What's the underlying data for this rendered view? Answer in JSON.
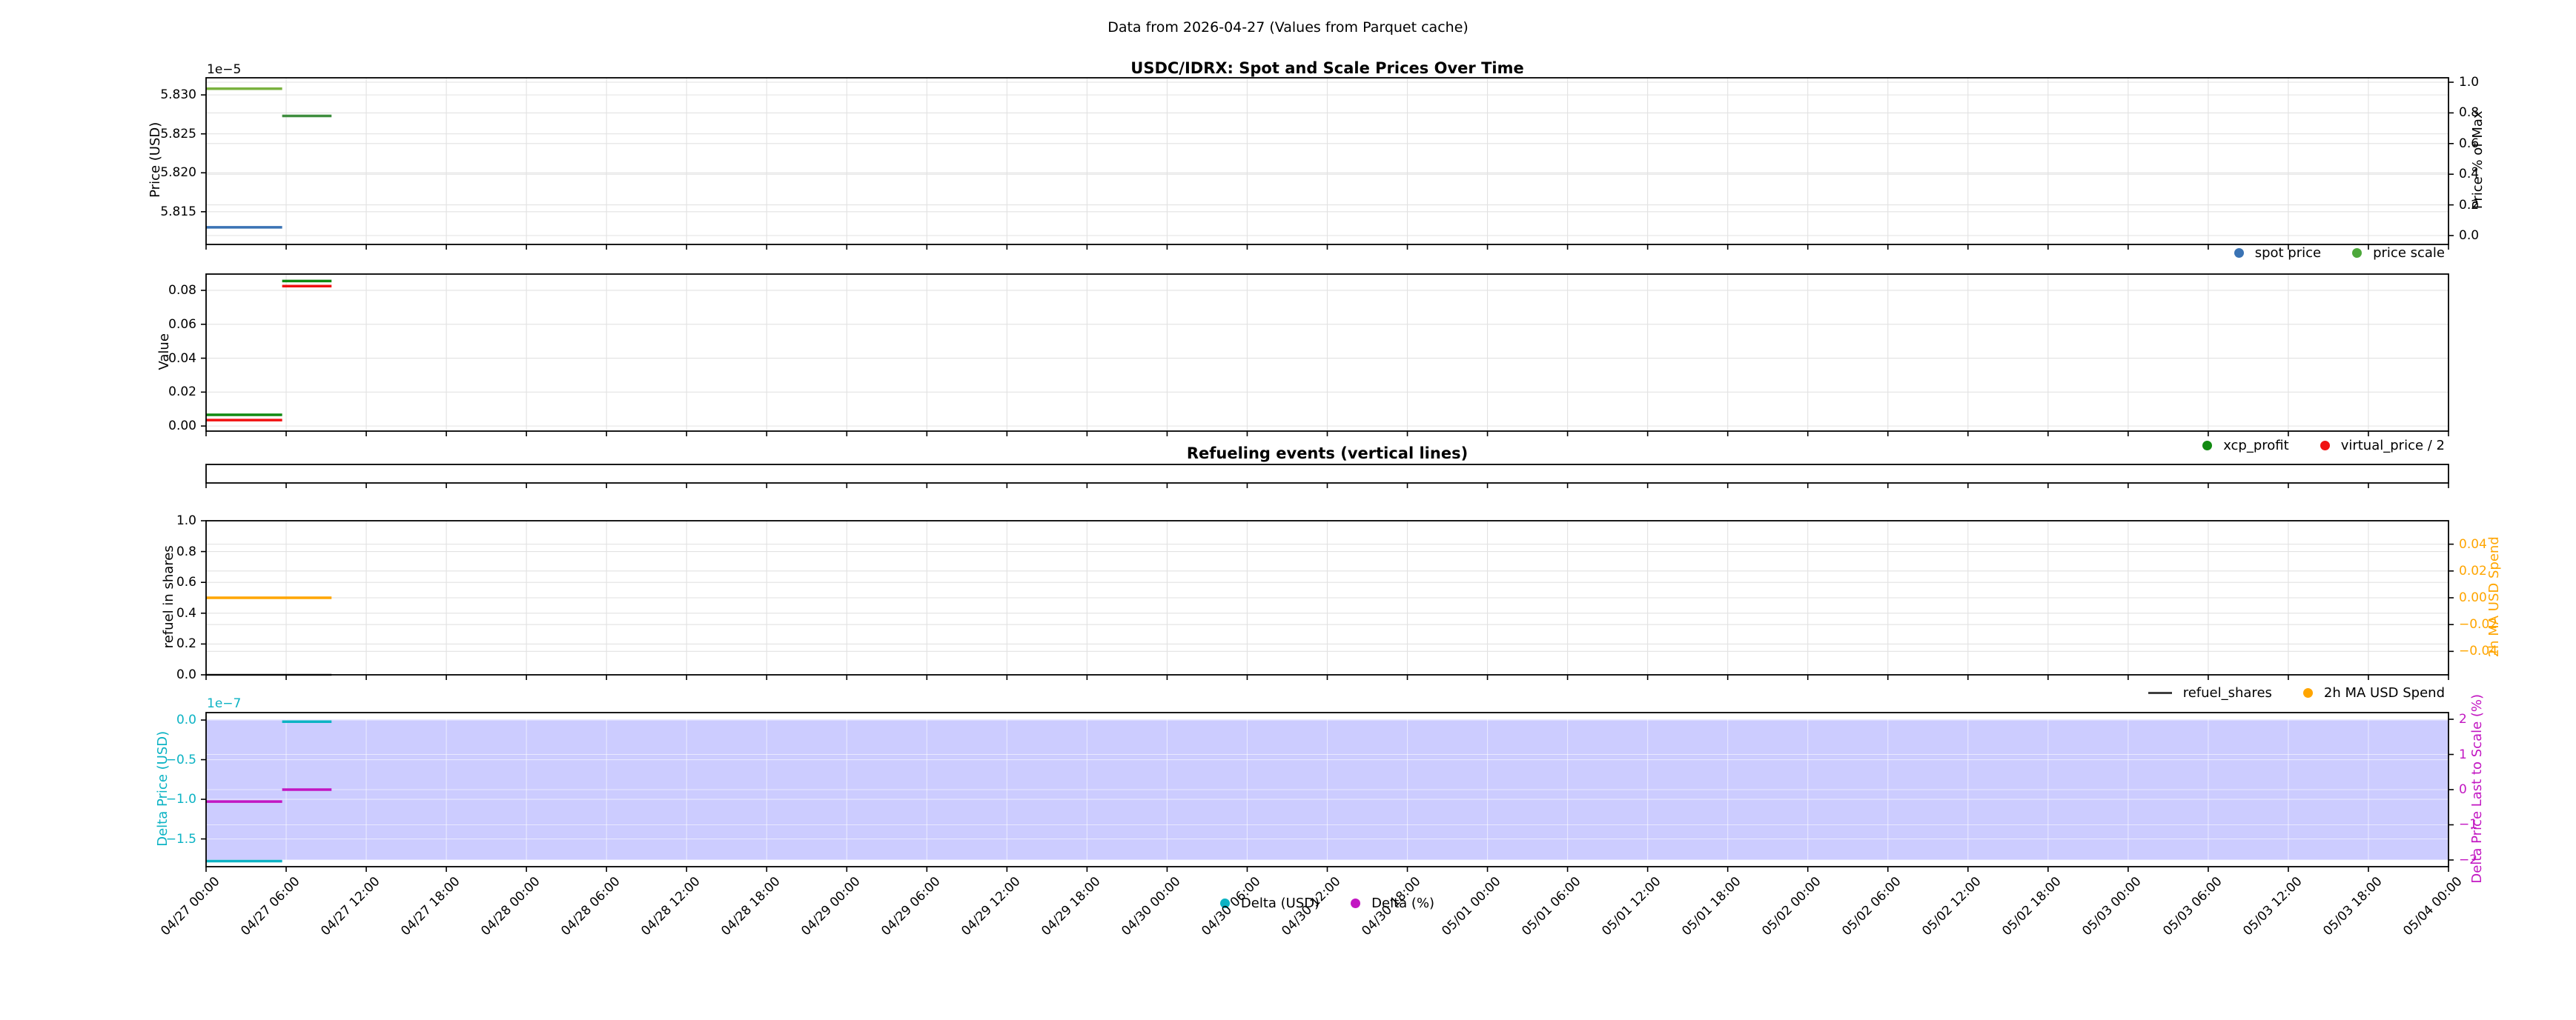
{
  "suptitle": "Data from 2026-04-27 (Values from Parquet cache)",
  "chart_data": {
    "type": "line",
    "note": "step-style horizontal segments; x measured in hours since 04/27 00:00",
    "x_axis": {
      "range_hours": [
        0,
        168
      ],
      "tick_interval_hours": 6,
      "tick_labels": [
        "04/27 00:00",
        "04/27 06:00",
        "04/27 12:00",
        "04/27 18:00",
        "04/28 00:00",
        "04/28 06:00",
        "04/28 12:00",
        "04/28 18:00",
        "04/29 00:00",
        "04/29 06:00",
        "04/29 12:00",
        "04/29 18:00",
        "04/30 00:00",
        "04/30 06:00",
        "04/30 12:00",
        "04/30 18:00",
        "05/01 00:00",
        "05/01 06:00",
        "05/01 12:00",
        "05/01 18:00",
        "05/02 00:00",
        "05/02 06:00",
        "05/02 12:00",
        "05/02 18:00",
        "05/03 00:00",
        "05/03 06:00",
        "05/03 12:00",
        "05/03 18:00",
        "05/04 00:00"
      ]
    },
    "subplots": [
      {
        "id": "ax1",
        "title": "USDC/IDRX: Spot and Scale Prices Over Time",
        "left_axis": {
          "label": "Price (USD)",
          "offset_text": "1e−5",
          "color": "#000000",
          "unit": "1e-5",
          "ylim": [
            5.8108,
            5.8322
          ],
          "ticks": [
            {
              "v": 5.815,
              "l": "5.815"
            },
            {
              "v": 5.82,
              "l": "5.820"
            },
            {
              "v": 5.825,
              "l": "5.825"
            },
            {
              "v": 5.83,
              "l": "5.830"
            }
          ]
        },
        "right_axis": {
          "label": "Price % of Max",
          "color": "#000000",
          "ylim": [
            -0.058,
            1.029
          ],
          "ticks": [
            {
              "v": 0.0,
              "l": "0.0"
            },
            {
              "v": 0.2,
              "l": "0.2"
            },
            {
              "v": 0.4,
              "l": "0.4"
            },
            {
              "v": 0.6,
              "l": "0.6"
            },
            {
              "v": 0.8,
              "l": "0.8"
            },
            {
              "v": 1.0,
              "l": "1.0"
            }
          ]
        },
        "series": [
          {
            "name": "spot price",
            "color": "#3a73b4",
            "axis": "left",
            "width": 3.5,
            "segments": [
              {
                "x0": 0,
                "x1": 5.7,
                "y": 5.813
              }
            ]
          },
          {
            "name": "price scale",
            "color": "#4da83b",
            "axis": "left",
            "width": 3.5,
            "segments": [
              {
                "x0": 0,
                "x1": 5.7,
                "y": 5.8308,
                "color": "#7ab23f"
              },
              {
                "x0": 5.7,
                "x1": 9.4,
                "y": 5.8273,
                "color": "#3f8e3f"
              }
            ]
          }
        ],
        "legend": [
          {
            "marker": "dot",
            "color": "#3a73b4",
            "label": "spot price"
          },
          {
            "marker": "dot",
            "color": "#4da83b",
            "label": "price scale"
          }
        ]
      },
      {
        "id": "ax2",
        "title": null,
        "left_axis": {
          "label": "Value",
          "color": "#000000",
          "ylim": [
            -0.003,
            0.0896
          ],
          "ticks": [
            {
              "v": 0.0,
              "l": "0.00"
            },
            {
              "v": 0.02,
              "l": "0.02"
            },
            {
              "v": 0.04,
              "l": "0.04"
            },
            {
              "v": 0.06,
              "l": "0.06"
            },
            {
              "v": 0.08,
              "l": "0.08"
            }
          ]
        },
        "series": [
          {
            "name": "xcp_profit",
            "color": "#118a11",
            "axis": "left",
            "width": 3.5,
            "segments": [
              {
                "x0": 0,
                "x1": 5.7,
                "y": 0.0066
              },
              {
                "x0": 5.7,
                "x1": 9.4,
                "y": 0.0855
              }
            ]
          },
          {
            "name": "virtual_price / 2",
            "color": "#f01212",
            "axis": "left",
            "width": 3.5,
            "segments": [
              {
                "x0": 0,
                "x1": 5.7,
                "y": 0.0035
              },
              {
                "x0": 5.7,
                "x1": 9.4,
                "y": 0.0825
              }
            ]
          }
        ],
        "legend": [
          {
            "marker": "dot",
            "color": "#118a11",
            "label": "xcp_profit"
          },
          {
            "marker": "dot",
            "color": "#f01212",
            "label": "virtual_price / 2"
          }
        ]
      },
      {
        "id": "ax3",
        "title": "Refueling events (vertical lines)",
        "series": [],
        "events": []
      },
      {
        "id": "ax4",
        "title": null,
        "left_axis": {
          "label": "refuel in shares",
          "color": "#000000",
          "ylim": [
            0,
            1
          ],
          "ticks": [
            {
              "v": 0.0,
              "l": "0.0"
            },
            {
              "v": 0.2,
              "l": "0.2"
            },
            {
              "v": 0.4,
              "l": "0.4"
            },
            {
              "v": 0.6,
              "l": "0.6"
            },
            {
              "v": 0.8,
              "l": "0.8"
            },
            {
              "v": 1.0,
              "l": "1.0"
            }
          ]
        },
        "right_axis": {
          "label": "2h MA USD Spend",
          "color": "#ffa500",
          "ylim": [
            -0.0575,
            0.0575
          ],
          "ticks": [
            {
              "v": 0.04,
              "l": "0.04"
            },
            {
              "v": 0.02,
              "l": "0.02"
            },
            {
              "v": 0.0,
              "l": "0.00"
            },
            {
              "v": -0.02,
              "l": "−0.02"
            },
            {
              "v": -0.04,
              "l": "−0.04"
            }
          ]
        },
        "series": [
          {
            "name": "refuel_shares",
            "color": "#3f3f3f",
            "axis": "left",
            "width": 2.5,
            "segments": [
              {
                "x0": 0,
                "x1": 9.4,
                "y": 0.0
              }
            ]
          },
          {
            "name": "2h MA USD Spend",
            "color": "#ffa500",
            "axis": "right",
            "width": 3.5,
            "segments": [
              {
                "x0": 0,
                "x1": 9.4,
                "y": 0.0
              }
            ]
          }
        ],
        "legend": [
          {
            "marker": "line",
            "color": "#3f3f3f",
            "label": "refuel_shares"
          },
          {
            "marker": "dot",
            "color": "#ffa500",
            "label": "2h MA USD Spend"
          }
        ]
      },
      {
        "id": "ax5",
        "title": null,
        "left_axis": {
          "label": "Delta Price (USD)",
          "offset_text": "1e−7",
          "color": "#0cb3c4",
          "unit": "1e-7",
          "ylim": [
            -1.85,
            0.094
          ],
          "ticks": [
            {
              "v": 0.0,
              "l": "0.0"
            },
            {
              "v": -0.5,
              "l": "−0.5"
            },
            {
              "v": -1.0,
              "l": "−1.0"
            },
            {
              "v": -1.5,
              "l": "−1.5"
            }
          ]
        },
        "right_axis": {
          "label": "Delta Price Last to Scale (%)",
          "color": "#c216c2",
          "ylim": [
            -2.19,
            2.19
          ],
          "ticks": [
            {
              "v": 2,
              "l": "2"
            },
            {
              "v": 1,
              "l": "1"
            },
            {
              "v": 0,
              "l": "0"
            },
            {
              "v": -1,
              "l": "−1"
            },
            {
              "v": -2,
              "l": "−2"
            }
          ]
        },
        "band": {
          "axis": "right",
          "y0": -2,
          "y1": 2,
          "color": "rgba(0,0,255,0.2)"
        },
        "grid_color": "rgba(255,255,255,0.55)",
        "series": [
          {
            "name": "Delta (USD)",
            "color": "#0cb3c4",
            "axis": "left",
            "width": 3.5,
            "segments": [
              {
                "x0": 0,
                "x1": 5.7,
                "y": -1.78
              },
              {
                "x0": 5.7,
                "x1": 9.4,
                "y": -0.02
              }
            ]
          },
          {
            "name": "Delta (%)",
            "color": "#c216c2",
            "axis": "right",
            "width": 3.5,
            "segments": [
              {
                "x0": 0,
                "x1": 5.7,
                "y": -0.34
              },
              {
                "x0": 5.7,
                "x1": 9.4,
                "y": 0.0
              }
            ]
          }
        ],
        "legend": [
          {
            "marker": "dot",
            "color": "#0cb3c4",
            "label": "Delta (USD)"
          },
          {
            "marker": "dot",
            "color": "#c216c2",
            "label": "Delta (%)"
          }
        ]
      }
    ]
  }
}
